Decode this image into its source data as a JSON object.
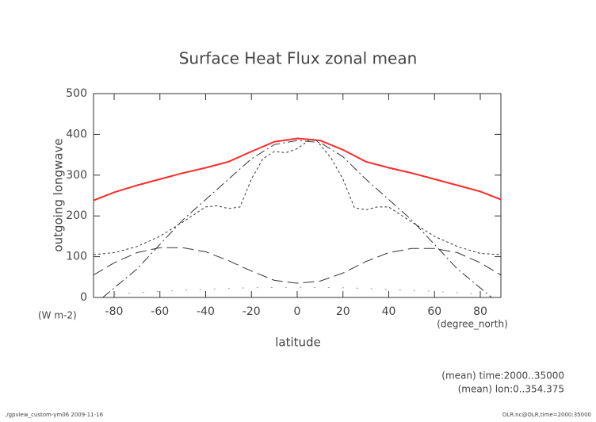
{
  "chart_data": {
    "type": "line",
    "title": "Surface Heat Flux zonal mean",
    "y_label": "outgoing longwave",
    "y_unit": "(W m-2)",
    "x_label": "latitude",
    "x_unit": "(degree_north)",
    "notes": [
      "(mean) time:2000..35000",
      "(mean) lon:0..354.375"
    ],
    "footer_left": "./gpview_custom-ym06  2009-11-16",
    "footer_right": "OLR.nc@OLR,time=2000:35000",
    "xlim": [
      -89,
      89
    ],
    "ylim": [
      0,
      500
    ],
    "xticks": [
      -80,
      -60,
      -40,
      -20,
      0,
      20,
      40,
      60,
      80
    ],
    "yticks": [
      0,
      100,
      200,
      300,
      400,
      500
    ],
    "series": [
      {
        "color": "#ff2a2a",
        "dash": "none",
        "x": [
          -89,
          -80,
          -70,
          -60,
          -50,
          -40,
          -30,
          -20,
          -10,
          0,
          10,
          20,
          30,
          40,
          50,
          60,
          70,
          80,
          89
        ],
        "values": [
          238,
          258,
          275,
          290,
          305,
          318,
          333,
          358,
          382,
          390,
          385,
          362,
          333,
          318,
          305,
          290,
          275,
          260,
          240
        ]
      },
      {
        "color": "#333333",
        "dash": "12,4,2,4",
        "x": [
          -85,
          -70,
          -60,
          -50,
          -40,
          -30,
          -20,
          -10,
          0,
          10,
          20,
          30,
          40,
          50,
          60,
          70,
          85
        ],
        "values": [
          0,
          70,
          130,
          190,
          240,
          290,
          340,
          375,
          385,
          380,
          345,
          290,
          240,
          190,
          130,
          70,
          0
        ]
      },
      {
        "color": "#333333",
        "dash": "3,3",
        "x": [
          -89,
          -80,
          -70,
          -60,
          -50,
          -40,
          -35,
          -30,
          -25,
          -20,
          -15,
          -10,
          -5,
          0,
          5,
          8,
          10,
          15,
          20,
          25,
          30,
          35,
          40,
          50,
          60,
          70,
          80,
          89
        ],
        "values": [
          105,
          110,
          125,
          150,
          185,
          222,
          225,
          218,
          222,
          290,
          340,
          358,
          355,
          365,
          385,
          388,
          375,
          340,
          290,
          220,
          215,
          222,
          222,
          185,
          150,
          125,
          108,
          105
        ]
      },
      {
        "color": "#333333",
        "dash": "14,6",
        "x": [
          -89,
          -80,
          -70,
          -60,
          -50,
          -40,
          -30,
          -20,
          -10,
          0,
          10,
          20,
          30,
          40,
          50,
          60,
          70,
          80,
          89
        ],
        "values": [
          55,
          85,
          110,
          122,
          122,
          112,
          90,
          65,
          42,
          35,
          40,
          60,
          88,
          110,
          120,
          120,
          110,
          85,
          55
        ]
      },
      {
        "color": "#999999",
        "dash": "2,16",
        "x": [
          -80,
          -60,
          -40,
          -20,
          0,
          20,
          40,
          60,
          80
        ],
        "values": [
          8,
          15,
          20,
          24,
          25,
          24,
          20,
          15,
          8
        ]
      }
    ]
  }
}
